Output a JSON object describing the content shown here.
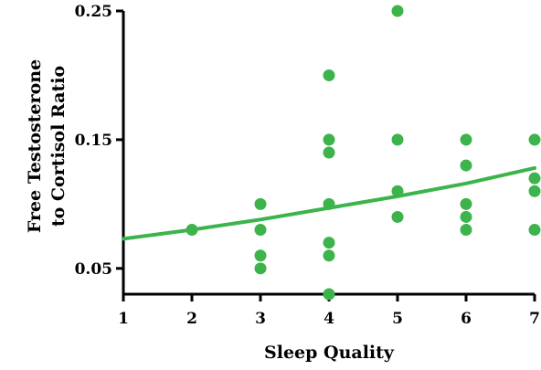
{
  "chart_data": {
    "type": "scatter",
    "xlabel": "Sleep Quality",
    "ylabel": [
      "Free Testosterone",
      "to Cortisol Ratio"
    ],
    "xlim": [
      1,
      7
    ],
    "ylim": [
      0.03,
      0.25
    ],
    "x_ticks": [
      1,
      2,
      3,
      4,
      5,
      6,
      7
    ],
    "y_ticks": [
      0.05,
      0.15,
      0.25
    ],
    "y_tick_labels": [
      "0.05",
      "0.15",
      "0.25"
    ],
    "grid": false,
    "point_color": "#3cb44b",
    "line_color": "#3cb44b",
    "points": [
      {
        "x": 2,
        "y": 0.08
      },
      {
        "x": 3,
        "y": 0.1
      },
      {
        "x": 3,
        "y": 0.08
      },
      {
        "x": 3,
        "y": 0.06
      },
      {
        "x": 3,
        "y": 0.05
      },
      {
        "x": 4,
        "y": 0.2
      },
      {
        "x": 4,
        "y": 0.15
      },
      {
        "x": 4,
        "y": 0.14
      },
      {
        "x": 4,
        "y": 0.1
      },
      {
        "x": 4,
        "y": 0.07
      },
      {
        "x": 4,
        "y": 0.06
      },
      {
        "x": 4,
        "y": 0.03
      },
      {
        "x": 5,
        "y": 0.25
      },
      {
        "x": 5,
        "y": 0.15
      },
      {
        "x": 5,
        "y": 0.11
      },
      {
        "x": 5,
        "y": 0.09
      },
      {
        "x": 6,
        "y": 0.15
      },
      {
        "x": 6,
        "y": 0.13
      },
      {
        "x": 6,
        "y": 0.1
      },
      {
        "x": 6,
        "y": 0.09
      },
      {
        "x": 6,
        "y": 0.08
      },
      {
        "x": 7,
        "y": 0.15
      },
      {
        "x": 7,
        "y": 0.12
      },
      {
        "x": 7,
        "y": 0.11
      },
      {
        "x": 7,
        "y": 0.08
      }
    ],
    "trend_line": {
      "x": [
        1,
        2,
        3,
        4,
        5,
        6,
        7
      ],
      "y": [
        0.073,
        0.08,
        0.088,
        0.097,
        0.106,
        0.116,
        0.128
      ]
    }
  }
}
